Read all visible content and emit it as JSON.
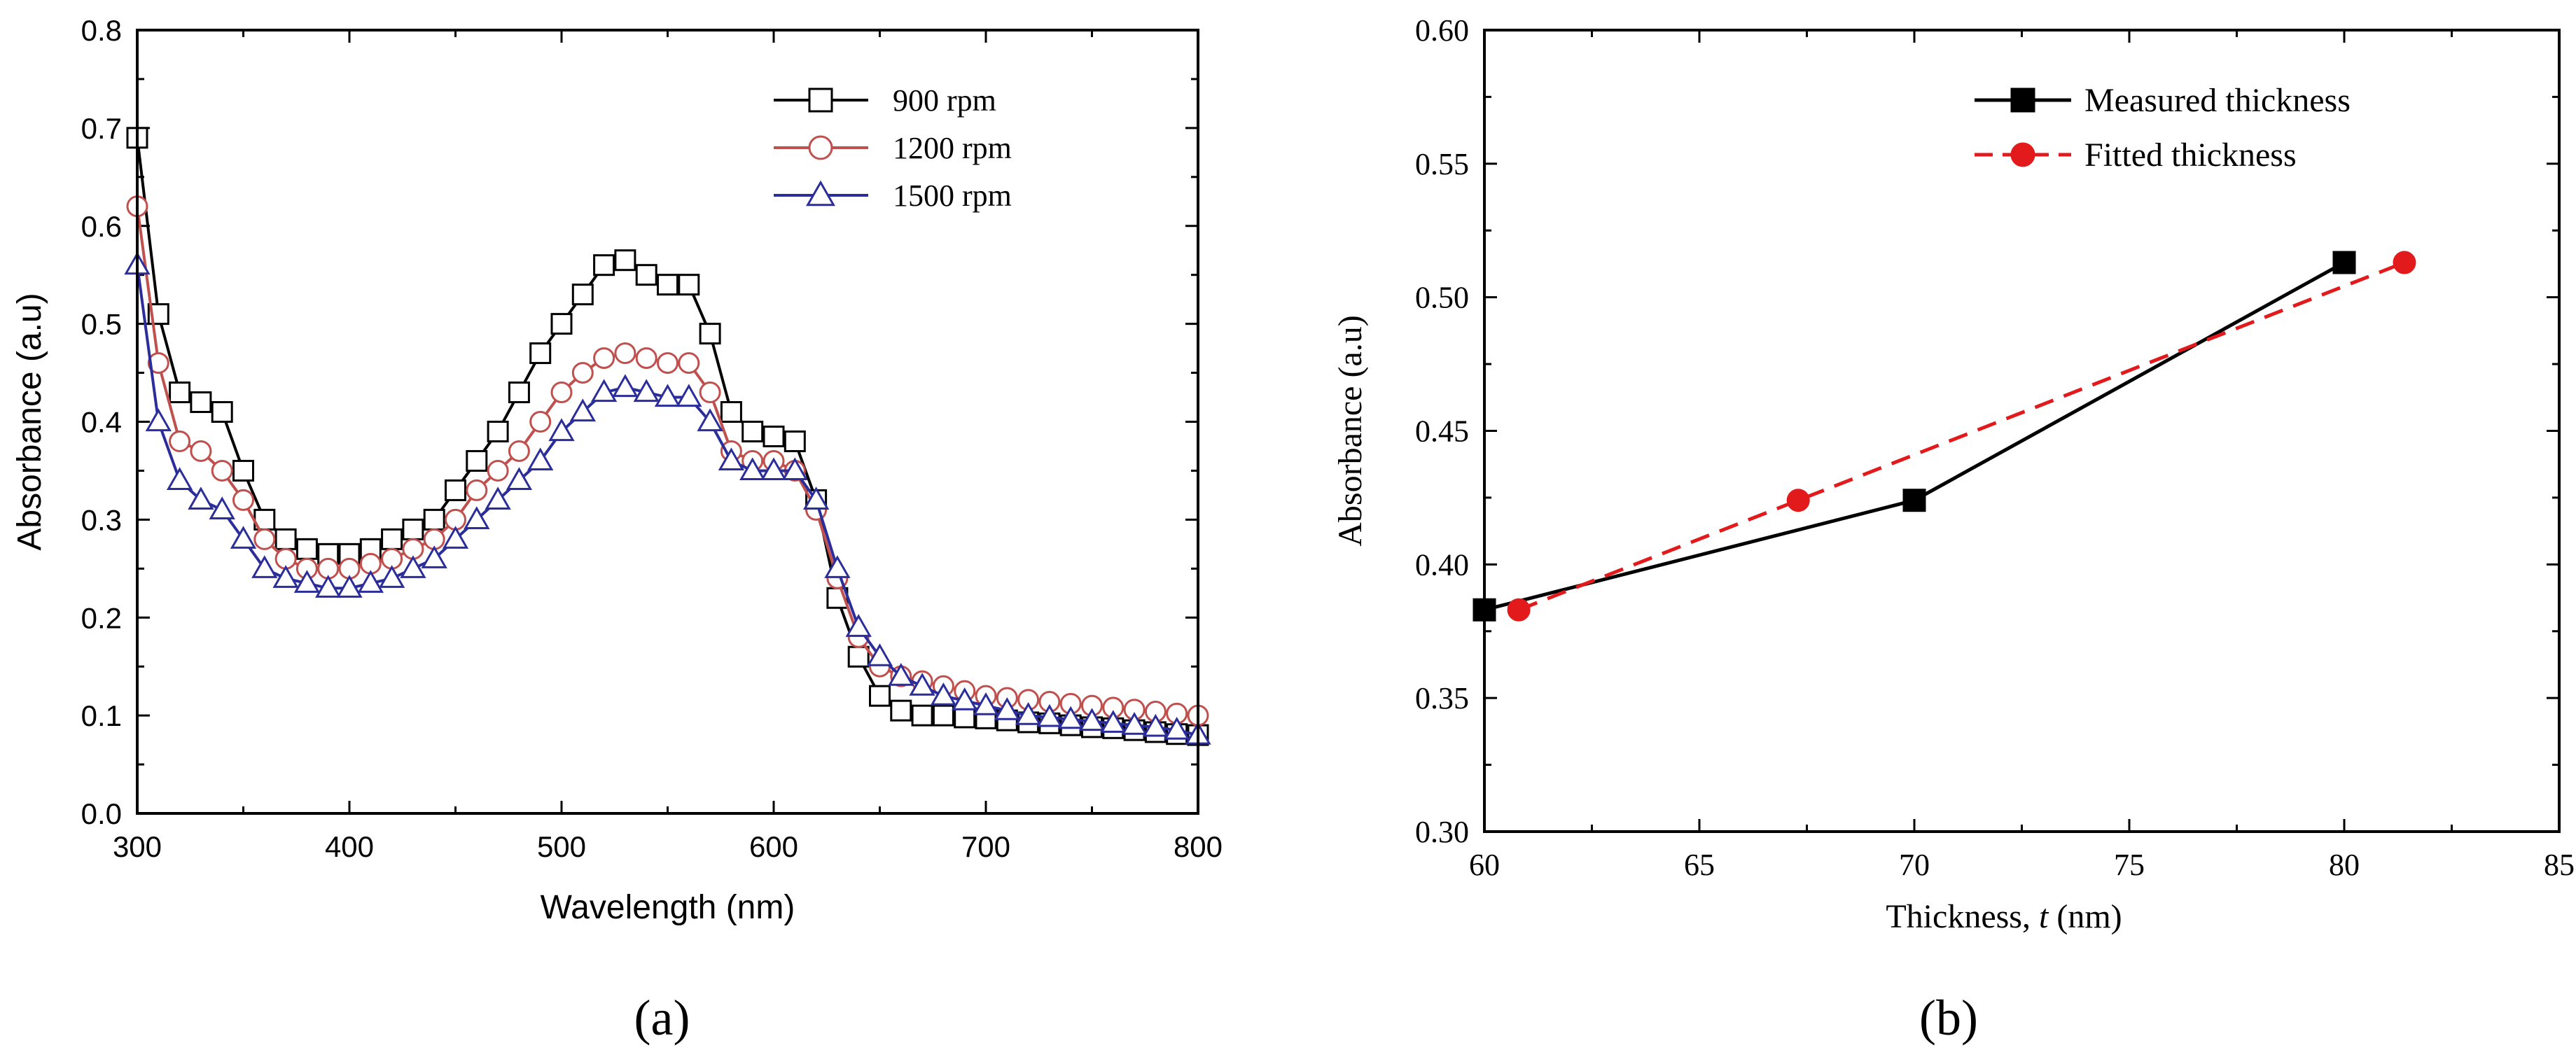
{
  "chart_data": [
    {
      "panel": "a",
      "panel_label": "(a)",
      "type": "line",
      "title": "",
      "xlabel": "Wavelength (nm)",
      "ylabel": "Absorbance (a.u)",
      "xlim": [
        300,
        800
      ],
      "ylim": [
        0.0,
        0.8
      ],
      "xticks": [
        300,
        400,
        500,
        600,
        700,
        800
      ],
      "yticks": [
        0.0,
        0.1,
        0.2,
        0.3,
        0.4,
        0.5,
        0.6,
        0.7,
        0.8
      ],
      "x": [
        300,
        310,
        320,
        330,
        340,
        350,
        360,
        370,
        380,
        390,
        400,
        410,
        420,
        430,
        440,
        450,
        460,
        470,
        480,
        490,
        500,
        510,
        520,
        530,
        540,
        550,
        560,
        570,
        580,
        590,
        600,
        610,
        620,
        630,
        640,
        650,
        660,
        670,
        680,
        690,
        700,
        710,
        720,
        730,
        740,
        750,
        760,
        770,
        780,
        790,
        800
      ],
      "legend": "top-right",
      "series": [
        {
          "name": "900 rpm",
          "color": "#000000",
          "marker": "square",
          "values": [
            0.69,
            0.51,
            0.43,
            0.42,
            0.41,
            0.35,
            0.3,
            0.28,
            0.27,
            0.265,
            0.265,
            0.27,
            0.28,
            0.29,
            0.3,
            0.33,
            0.36,
            0.39,
            0.43,
            0.47,
            0.5,
            0.53,
            0.56,
            0.565,
            0.55,
            0.54,
            0.54,
            0.49,
            0.41,
            0.39,
            0.385,
            0.38,
            0.32,
            0.22,
            0.16,
            0.12,
            0.105,
            0.1,
            0.1,
            0.098,
            0.097,
            0.095,
            0.093,
            0.092,
            0.09,
            0.088,
            0.087,
            0.085,
            0.083,
            0.081,
            0.08
          ]
        },
        {
          "name": "1200 rpm",
          "color": "#c0504d",
          "marker": "circle",
          "values": [
            0.62,
            0.46,
            0.38,
            0.37,
            0.35,
            0.32,
            0.28,
            0.26,
            0.25,
            0.25,
            0.25,
            0.255,
            0.26,
            0.27,
            0.28,
            0.3,
            0.33,
            0.35,
            0.37,
            0.4,
            0.43,
            0.45,
            0.465,
            0.47,
            0.465,
            0.46,
            0.46,
            0.43,
            0.37,
            0.36,
            0.36,
            0.35,
            0.31,
            0.24,
            0.18,
            0.15,
            0.14,
            0.135,
            0.13,
            0.125,
            0.12,
            0.118,
            0.116,
            0.114,
            0.112,
            0.11,
            0.108,
            0.106,
            0.104,
            0.102,
            0.1
          ]
        },
        {
          "name": "1500 rpm",
          "color": "#2b2e9a",
          "marker": "triangle",
          "values": [
            0.56,
            0.4,
            0.34,
            0.32,
            0.31,
            0.28,
            0.25,
            0.24,
            0.235,
            0.23,
            0.23,
            0.235,
            0.24,
            0.25,
            0.26,
            0.28,
            0.3,
            0.32,
            0.34,
            0.36,
            0.39,
            0.41,
            0.43,
            0.435,
            0.43,
            0.425,
            0.425,
            0.4,
            0.36,
            0.35,
            0.35,
            0.35,
            0.32,
            0.25,
            0.19,
            0.16,
            0.14,
            0.13,
            0.12,
            0.115,
            0.11,
            0.105,
            0.1,
            0.098,
            0.096,
            0.094,
            0.092,
            0.09,
            0.088,
            0.085,
            0.08
          ]
        }
      ]
    },
    {
      "panel": "b",
      "panel_label": "(b)",
      "type": "line",
      "title": "",
      "xlabel_prefix": "Thickness, ",
      "xlabel_var": "t",
      "xlabel_suffix": " (nm)",
      "ylabel": "Absorbance (a.u)",
      "xlim": [
        60,
        85
      ],
      "ylim": [
        0.3,
        0.6
      ],
      "xticks": [
        60,
        65,
        70,
        75,
        80,
        85
      ],
      "yticks": [
        0.3,
        0.35,
        0.4,
        0.45,
        0.5,
        0.55,
        0.6
      ],
      "legend": "top-right",
      "series": [
        {
          "name": "Measured thickness",
          "color": "#000000",
          "marker": "square",
          "line": "solid",
          "x": [
            60.0,
            70.0,
            80.0
          ],
          "values": [
            0.383,
            0.424,
            0.513
          ]
        },
        {
          "name": "Fitted thickness",
          "color": "#e31a1c",
          "marker": "circle",
          "line": "dashed",
          "x": [
            60.8,
            67.3,
            81.4
          ],
          "values": [
            0.383,
            0.424,
            0.513
          ]
        }
      ]
    }
  ]
}
